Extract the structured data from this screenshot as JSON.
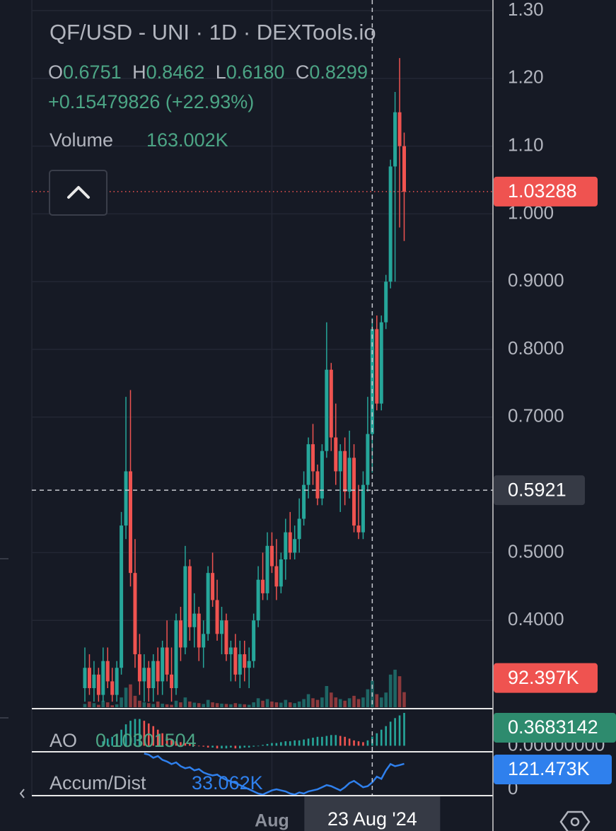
{
  "chart_data": {
    "type": "candlestick",
    "title": "QF/USD - UNI · 1D · DEXTools.io",
    "legend": {
      "ohlc": [
        {
          "key": "O",
          "value": "0.6751"
        },
        {
          "key": "H",
          "value": "0.8462"
        },
        {
          "key": "L",
          "value": "0.6180"
        },
        {
          "key": "C",
          "value": "0.8299"
        }
      ],
      "change": "+0.15479826 (+22.93%)",
      "volume_label": "Volume",
      "volume": "163.002K"
    },
    "categories": [
      null,
      null,
      null,
      null,
      null,
      null,
      null,
      null,
      null,
      null,
      null,
      null,
      null,
      null,
      null,
      null,
      null,
      null,
      null,
      null,
      null,
      null,
      null,
      null,
      null,
      null,
      null,
      null,
      null,
      null,
      null,
      null,
      null,
      null,
      null,
      null,
      null,
      null,
      null,
      null,
      null,
      "Aug",
      null,
      null,
      null,
      null,
      null,
      null,
      null,
      null,
      null,
      null,
      null,
      null,
      null,
      null,
      null,
      null,
      null,
      null,
      null,
      null,
      null,
      "23 Aug '24",
      null,
      null,
      null,
      null,
      null,
      null,
      null
    ],
    "open": [
      0.3,
      0.33,
      0.3,
      0.32,
      0.29,
      0.34,
      0.31,
      0.29,
      0.33,
      0.54,
      0.62,
      0.47,
      0.35,
      0.31,
      0.33,
      0.3,
      0.34,
      0.31,
      0.36,
      0.32,
      0.3,
      0.4,
      0.36,
      0.48,
      0.39,
      0.41,
      0.36,
      0.38,
      0.47,
      0.43,
      0.38,
      0.4,
      0.35,
      0.36,
      0.32,
      0.35,
      0.33,
      0.34,
      0.4,
      0.46,
      0.44,
      0.51,
      0.48,
      0.45,
      0.49,
      0.53,
      0.5,
      0.52,
      0.55,
      0.6,
      0.66,
      0.62,
      0.58,
      0.65,
      0.77,
      0.67,
      0.62,
      0.65,
      0.59,
      0.64,
      0.54,
      0.53,
      0.6,
      0.6751,
      0.8299,
      0.72,
      0.84,
      0.9,
      1.07,
      1.15,
      1.1
    ],
    "high": [
      0.36,
      0.35,
      0.34,
      0.33,
      0.36,
      0.36,
      0.33,
      0.34,
      0.56,
      0.73,
      0.74,
      0.52,
      0.38,
      0.35,
      0.34,
      0.35,
      0.36,
      0.37,
      0.4,
      0.36,
      0.41,
      0.42,
      0.51,
      0.49,
      0.44,
      0.42,
      0.4,
      0.48,
      0.5,
      0.46,
      0.42,
      0.41,
      0.37,
      0.38,
      0.37,
      0.37,
      0.36,
      0.41,
      0.48,
      0.5,
      0.53,
      0.53,
      0.52,
      0.5,
      0.55,
      0.56,
      0.54,
      0.58,
      0.62,
      0.67,
      0.69,
      0.63,
      0.66,
      0.84,
      0.78,
      0.72,
      0.66,
      0.67,
      0.68,
      0.66,
      0.6,
      0.62,
      0.73,
      0.8462,
      0.85,
      0.85,
      0.91,
      1.08,
      1.18,
      1.23,
      1.12
    ],
    "low": [
      0.28,
      0.29,
      0.28,
      0.28,
      0.28,
      0.3,
      0.28,
      0.28,
      0.32,
      0.52,
      0.45,
      0.33,
      0.29,
      0.28,
      0.28,
      0.28,
      0.29,
      0.29,
      0.31,
      0.28,
      0.29,
      0.34,
      0.35,
      0.37,
      0.36,
      0.34,
      0.33,
      0.37,
      0.42,
      0.37,
      0.35,
      0.34,
      0.31,
      0.31,
      0.3,
      0.31,
      0.3,
      0.33,
      0.39,
      0.43,
      0.43,
      0.47,
      0.43,
      0.44,
      0.46,
      0.49,
      0.49,
      0.5,
      0.54,
      0.58,
      0.6,
      0.57,
      0.57,
      0.64,
      0.65,
      0.6,
      0.56,
      0.57,
      0.58,
      0.53,
      0.52,
      0.52,
      0.59,
      0.618,
      0.71,
      0.71,
      0.83,
      0.89,
      0.9,
      0.98,
      0.96
    ],
    "close": [
      0.33,
      0.3,
      0.32,
      0.29,
      0.34,
      0.31,
      0.29,
      0.33,
      0.54,
      0.62,
      0.47,
      0.35,
      0.31,
      0.33,
      0.3,
      0.34,
      0.31,
      0.36,
      0.32,
      0.3,
      0.4,
      0.36,
      0.48,
      0.39,
      0.41,
      0.36,
      0.38,
      0.47,
      0.43,
      0.38,
      0.4,
      0.35,
      0.36,
      0.32,
      0.35,
      0.33,
      0.34,
      0.4,
      0.46,
      0.44,
      0.51,
      0.48,
      0.45,
      0.49,
      0.53,
      0.5,
      0.52,
      0.55,
      0.6,
      0.66,
      0.62,
      0.58,
      0.65,
      0.77,
      0.67,
      0.62,
      0.65,
      0.59,
      0.64,
      0.54,
      0.53,
      0.6,
      0.6751,
      0.8299,
      0.72,
      0.84,
      0.9,
      1.07,
      1.15,
      1.1,
      1.03288
    ],
    "colors": {
      "up": "#26a69a",
      "down": "#ef5350"
    },
    "ylim": [
      0.2718,
      1.3157
    ],
    "yticks": [
      {
        "value": 1.3,
        "label": "1.30"
      },
      {
        "value": 1.2,
        "label": "1.20"
      },
      {
        "value": 1.1,
        "label": "1.10"
      },
      {
        "value": 1.0,
        "label": "1.000"
      },
      {
        "value": 0.9,
        "label": "0.9000"
      },
      {
        "value": 0.8,
        "label": "0.8000"
      },
      {
        "value": 0.7,
        "label": "0.7000"
      },
      {
        "value": 0.5,
        "label": "0.5000"
      },
      {
        "value": 0.4,
        "label": "0.4000"
      }
    ],
    "grid": true,
    "last_price": 1.03288,
    "crosshair": {
      "index": 63,
      "price": 0.5921
    },
    "volume": {
      "values": [
        20,
        35,
        25,
        15,
        40,
        30,
        12,
        18,
        60,
        120,
        140,
        70,
        40,
        30,
        25,
        20,
        35,
        22,
        18,
        15,
        40,
        30,
        60,
        35,
        28,
        25,
        20,
        45,
        30,
        25,
        22,
        20,
        18,
        25,
        20,
        18,
        15,
        30,
        55,
        40,
        50,
        35,
        30,
        28,
        45,
        30,
        25,
        35,
        50,
        80,
        55,
        45,
        60,
        130,
        90,
        60,
        50,
        40,
        55,
        70,
        50,
        60,
        110,
        163.002,
        80,
        60,
        90,
        200,
        230,
        190,
        92.397
      ],
      "ylim": [
        0,
        260
      ],
      "last_label": "92.397K"
    },
    "ao": {
      "name": "AO",
      "legend_value": "0.10301504",
      "values": [
        null,
        null,
        null,
        null,
        0.05,
        0.08,
        0.1,
        0.12,
        0.18,
        0.24,
        0.28,
        0.3,
        0.3,
        0.28,
        0.25,
        0.22,
        0.18,
        0.14,
        0.1,
        0.07,
        0.05,
        0.04,
        0.03,
        0.02,
        0.01,
        0.0,
        -0.01,
        -0.02,
        -0.02,
        -0.03,
        -0.03,
        -0.03,
        -0.02,
        -0.03,
        -0.03,
        -0.02,
        -0.02,
        -0.01,
        0.0,
        0.01,
        0.02,
        0.03,
        0.03,
        0.04,
        0.05,
        0.05,
        0.06,
        0.06,
        0.07,
        0.08,
        0.09,
        0.1,
        0.1,
        0.11,
        0.12,
        0.12,
        0.11,
        0.1,
        0.08,
        0.06,
        0.05,
        0.04,
        0.06,
        0.10301504,
        0.14,
        0.18,
        0.22,
        0.27,
        0.31,
        0.34,
        0.3683142
      ],
      "ylim": [
        -0.06,
        0.4
      ],
      "yticks": [
        {
          "value": 0,
          "label": "0.00000000"
        }
      ],
      "last_label": "0.3683142",
      "label_color": "#2e8b6e"
    },
    "accum_dist": {
      "name": "Accum/Dist",
      "legend_value": "33.062K",
      "values": [
        null,
        null,
        null,
        null,
        null,
        null,
        null,
        null,
        null,
        null,
        null,
        null,
        null,
        170,
        165,
        150,
        158,
        140,
        132,
        120,
        128,
        110,
        100,
        105,
        90,
        96,
        80,
        72,
        66,
        70,
        55,
        45,
        38,
        30,
        20,
        10,
        0,
        -10,
        -20,
        -25,
        -15,
        -5,
        0,
        -5,
        -10,
        -20,
        -25,
        -15,
        -20,
        -10,
        -5,
        0,
        10,
        20,
        15,
        5,
        -5,
        10,
        30,
        40,
        25,
        10,
        15,
        33.062,
        60,
        50,
        90,
        120,
        110,
        115,
        121.473
      ],
      "ylim": [
        -30,
        175
      ],
      "yticks": [
        0
      ],
      "last_label": "121.473K",
      "color": "#2f80ed"
    }
  }
}
